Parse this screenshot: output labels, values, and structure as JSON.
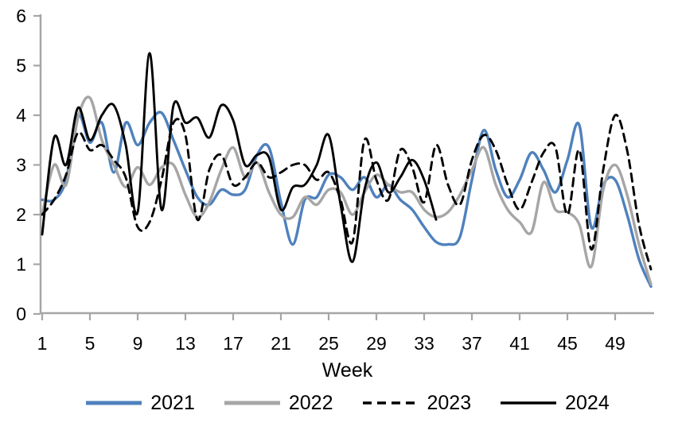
{
  "chart_data": {
    "type": "line",
    "title": "",
    "xlabel": "Week",
    "ylabel": "",
    "x": [
      1,
      2,
      3,
      4,
      5,
      6,
      7,
      8,
      9,
      10,
      11,
      12,
      13,
      14,
      15,
      16,
      17,
      18,
      19,
      20,
      21,
      22,
      23,
      24,
      25,
      26,
      27,
      28,
      29,
      30,
      31,
      32,
      33,
      34,
      35,
      36,
      37,
      38,
      39,
      40,
      41,
      42,
      43,
      44,
      45,
      46,
      47,
      48,
      49,
      50,
      51,
      52
    ],
    "x_ticks": [
      1,
      5,
      9,
      13,
      17,
      21,
      25,
      29,
      33,
      37,
      41,
      45,
      49
    ],
    "y_ticks": [
      0,
      1,
      2,
      3,
      4,
      5,
      6
    ],
    "ylim": [
      0,
      6
    ],
    "grid": false,
    "legend_position": "bottom",
    "axis_color": "#A6A6A6",
    "text_color": "#000000",
    "series": [
      {
        "name": "2021",
        "color": "#4F81BD",
        "style": "solid",
        "values": [
          2.3,
          2.3,
          2.7,
          4.0,
          3.45,
          3.85,
          2.85,
          3.85,
          3.4,
          3.85,
          4.05,
          3.5,
          2.9,
          2.35,
          2.2,
          2.5,
          2.4,
          2.5,
          3.2,
          3.35,
          2.25,
          1.4,
          2.3,
          2.35,
          2.8,
          2.75,
          2.5,
          2.75,
          2.35,
          2.6,
          2.3,
          2.1,
          1.75,
          1.45,
          1.4,
          1.55,
          2.7,
          3.7,
          2.9,
          2.35,
          2.7,
          3.25,
          2.9,
          2.45,
          3.1,
          3.8,
          1.75,
          2.6,
          2.7,
          2.0,
          1.1,
          0.55
        ]
      },
      {
        "name": "2022",
        "color": "#A6A6A6",
        "style": "solid",
        "values": [
          2.0,
          3.0,
          2.6,
          3.95,
          4.35,
          3.5,
          3.0,
          2.55,
          2.95,
          2.6,
          2.95,
          3.0,
          2.4,
          1.95,
          2.25,
          2.9,
          3.35,
          2.75,
          3.05,
          2.45,
          2.0,
          1.95,
          2.35,
          2.2,
          2.5,
          2.45,
          2.0,
          2.45,
          2.8,
          2.6,
          2.45,
          2.45,
          2.1,
          1.95,
          2.05,
          2.4,
          2.9,
          3.35,
          2.6,
          2.1,
          1.85,
          1.65,
          2.65,
          2.1,
          2.05,
          1.8,
          0.95,
          2.5,
          3.0,
          2.4,
          1.4,
          0.6
        ]
      },
      {
        "name": "2023",
        "color": "#000000",
        "style": "dashed",
        "values": [
          2.0,
          2.3,
          2.8,
          3.65,
          3.3,
          3.4,
          3.1,
          2.75,
          1.75,
          1.85,
          2.7,
          3.85,
          3.6,
          1.9,
          2.9,
          3.2,
          2.6,
          2.75,
          3.05,
          2.75,
          2.85,
          3.0,
          3.0,
          2.7,
          2.85,
          2.3,
          1.45,
          3.5,
          2.7,
          2.3,
          3.3,
          2.95,
          2.25,
          3.4,
          2.6,
          2.2,
          3.1,
          3.6,
          3.3,
          2.6,
          2.1,
          2.65,
          3.25,
          3.35,
          2.0,
          3.3,
          1.3,
          2.9,
          4.0,
          3.3,
          1.8,
          0.9
        ]
      },
      {
        "name": "2024",
        "color": "#000000",
        "style": "solid",
        "values": [
          1.6,
          3.55,
          3.0,
          4.15,
          3.5,
          4.0,
          4.2,
          3.4,
          2.05,
          5.25,
          2.1,
          4.2,
          3.85,
          3.95,
          3.55,
          4.2,
          3.9,
          3.0,
          3.2,
          3.15,
          2.1,
          2.55,
          2.6,
          3.0,
          3.6,
          2.2,
          1.05,
          2.5,
          3.05,
          2.45,
          2.75,
          3.1,
          2.7,
          1.9
        ]
      }
    ]
  }
}
